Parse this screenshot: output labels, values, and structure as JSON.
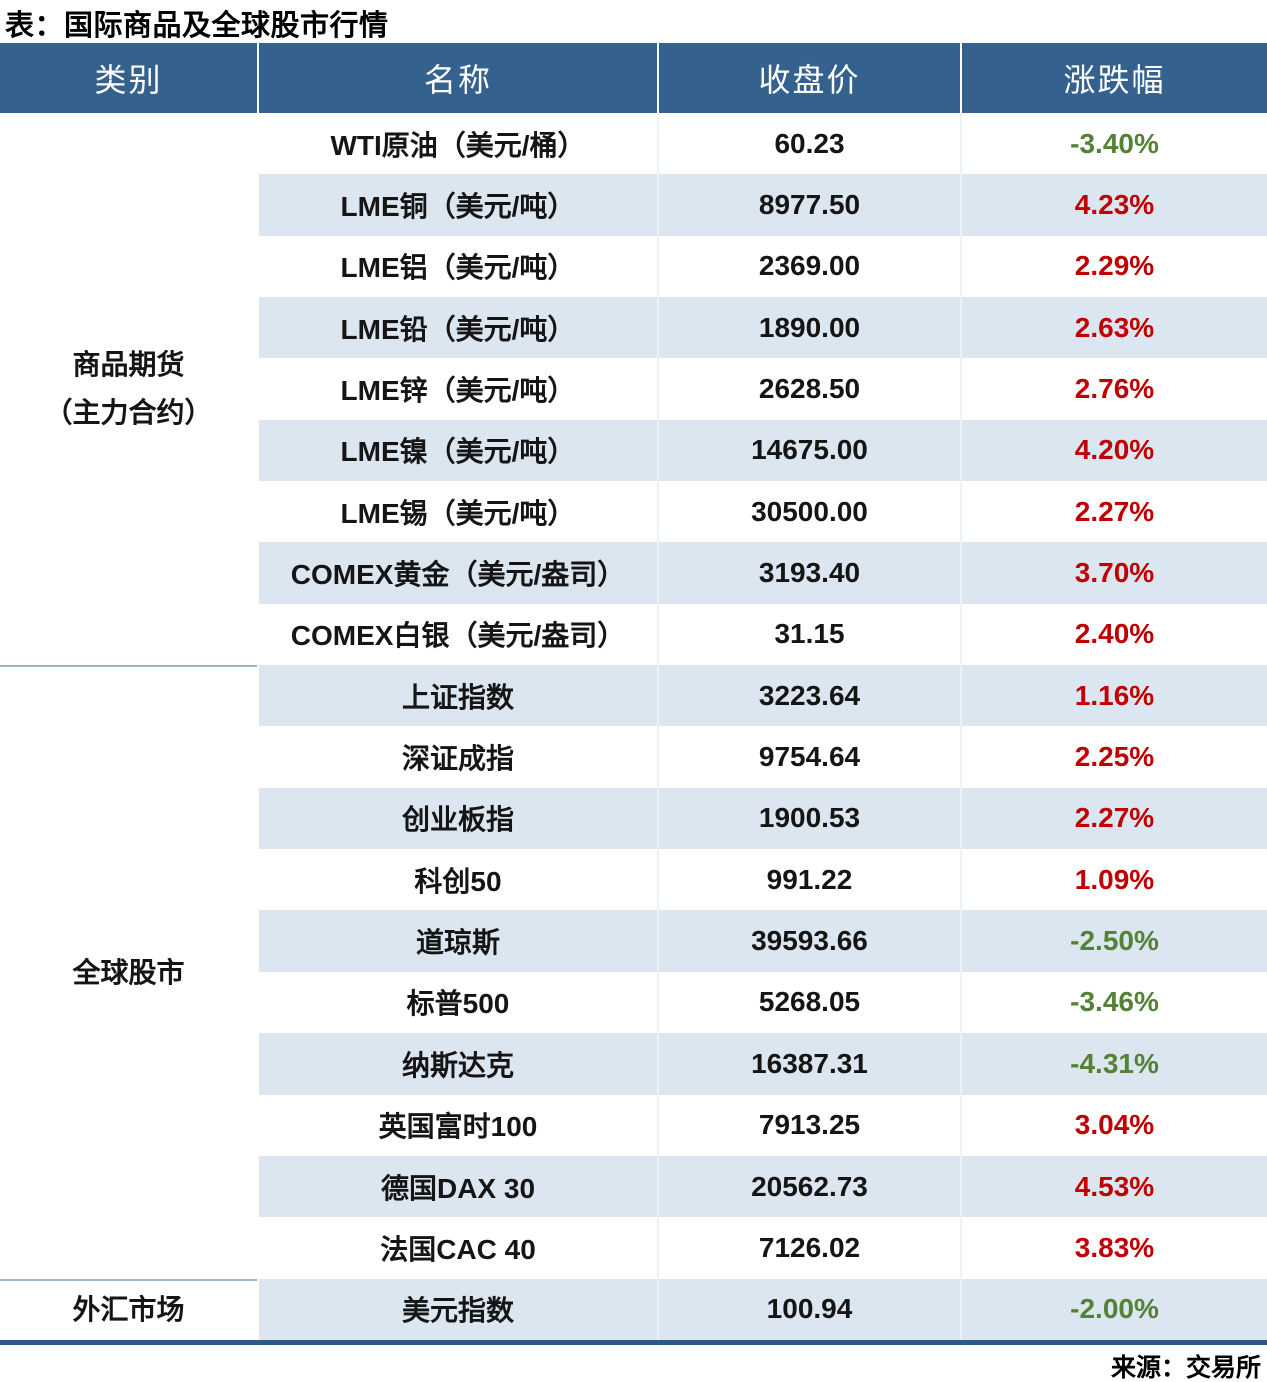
{
  "page": {
    "title": "表：国际商品及全球股市行情",
    "source_note": "来源：交易所"
  },
  "colors": {
    "header_bg": "#35618e",
    "stripe": "#dce6f1",
    "positive_red": "#c00000",
    "negative_green": "#538135",
    "bottom_border": "#2d5986",
    "group_divider": "#9db4cb"
  },
  "chart_data": {
    "type": "table",
    "title": "国际商品及全球股市行情",
    "columns": [
      "类别",
      "名称",
      "收盘价",
      "涨跌幅"
    ],
    "groups": [
      {
        "category_lines": [
          "商品期货",
          "（主力合约）"
        ],
        "rows": [
          {
            "name": "WTI原油（美元/桶）",
            "close": "60.23",
            "change": "-3.40%"
          },
          {
            "name": "LME铜（美元/吨）",
            "close": "8977.50",
            "change": "4.23%"
          },
          {
            "name": "LME铝（美元/吨）",
            "close": "2369.00",
            "change": "2.29%"
          },
          {
            "name": "LME铅（美元/吨）",
            "close": "1890.00",
            "change": "2.63%"
          },
          {
            "name": "LME锌（美元/吨）",
            "close": "2628.50",
            "change": "2.76%"
          },
          {
            "name": "LME镍（美元/吨）",
            "close": "14675.00",
            "change": "4.20%"
          },
          {
            "name": "LME锡（美元/吨）",
            "close": "30500.00",
            "change": "2.27%"
          },
          {
            "name": "COMEX黄金（美元/盎司）",
            "close": "3193.40",
            "change": "3.70%"
          },
          {
            "name": "COMEX白银（美元/盎司）",
            "close": "31.15",
            "change": "2.40%"
          }
        ]
      },
      {
        "category_lines": [
          "全球股市"
        ],
        "rows": [
          {
            "name": "上证指数",
            "close": "3223.64",
            "change": "1.16%"
          },
          {
            "name": "深证成指",
            "close": "9754.64",
            "change": "2.25%"
          },
          {
            "name": "创业板指",
            "close": "1900.53",
            "change": "2.27%"
          },
          {
            "name": "科创50",
            "close": "991.22",
            "change": "1.09%"
          },
          {
            "name": "道琼斯",
            "close": "39593.66",
            "change": "-2.50%"
          },
          {
            "name": "标普500",
            "close": "5268.05",
            "change": "-3.46%"
          },
          {
            "name": "纳斯达克",
            "close": "16387.31",
            "change": "-4.31%"
          },
          {
            "name": "英国富时100",
            "close": "7913.25",
            "change": "3.04%"
          },
          {
            "name": "德国DAX 30",
            "close": "20562.73",
            "change": "4.53%"
          },
          {
            "name": "法国CAC 40",
            "close": "7126.02",
            "change": "3.83%"
          }
        ]
      },
      {
        "category_lines": [
          "外汇市场"
        ],
        "rows": [
          {
            "name": "美元指数",
            "close": "100.94",
            "change": "-2.00%"
          }
        ]
      }
    ]
  }
}
